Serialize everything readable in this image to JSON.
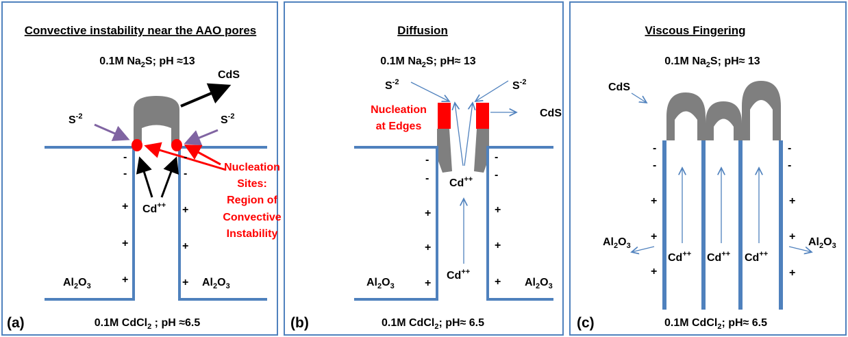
{
  "panels": [
    {
      "label": "(a)",
      "title": "Convective instability near the AAO pores",
      "top_solution": [
        "0.1M Na",
        "2",
        "S; pH ≈13"
      ],
      "bottom_solution": [
        "0.1M CdCl",
        "2",
        " ; pH ≈6.5"
      ],
      "product": "CdS",
      "sulfide_ion": [
        "S",
        "-2"
      ],
      "cadmium_ion": [
        "Cd",
        "++"
      ],
      "substrate": [
        "Al",
        "2",
        "O",
        "3"
      ],
      "nucleation": [
        "Nucleation",
        "Sites:",
        "Region of",
        "Convective",
        "Instability"
      ],
      "charges": [
        "-",
        "+"
      ]
    },
    {
      "label": "(b)",
      "title": "Diffusion",
      "top_solution": [
        "0.1M Na",
        "2",
        "S; pH≈ 13"
      ],
      "bottom_solution": [
        "0.1M CdCl",
        "2",
        "; pH≈ 6.5"
      ],
      "product": "CdS",
      "sulfide_ion": [
        "S",
        "-2"
      ],
      "cadmium_ion": [
        "Cd",
        "++"
      ],
      "substrate": [
        "Al",
        "2",
        "O",
        "3"
      ],
      "nucleation": [
        "Nucleation",
        "at Edges"
      ],
      "charges": [
        "-",
        "+"
      ]
    },
    {
      "label": "(c)",
      "title": "Viscous Fingering",
      "top_solution": [
        "0.1M Na",
        "2",
        "S; pH≈ 13"
      ],
      "bottom_solution": [
        "0.1M CdCl",
        "2",
        "; pH≈ 6.5"
      ],
      "product": "CdS",
      "cadmium_ion": [
        "Cd",
        "++"
      ],
      "substrate": [
        "Al",
        "2",
        "O",
        "3"
      ],
      "charges": [
        "-",
        "+"
      ]
    }
  ]
}
